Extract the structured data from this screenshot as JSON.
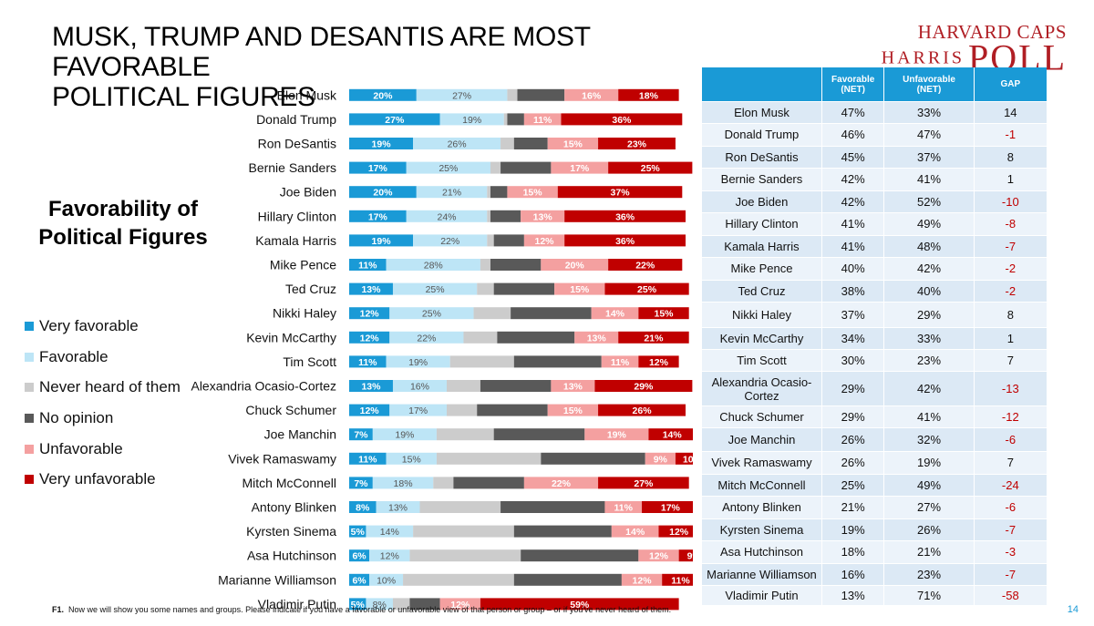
{
  "title_line1": "MUSK, TRUMP AND DESANTIS ARE MOST FAVORABLE",
  "title_line2": "POLITICAL FIGURES",
  "logo": {
    "top": "HARVARD CAPS",
    "bottom_left": "HARRIS",
    "bottom_right": "POLL"
  },
  "subheading_line1": "Favorability of",
  "subheading_line2": "Political Figures",
  "legend": [
    {
      "label": "Very favorable",
      "color": "#1a9ad6"
    },
    {
      "label": "Favorable",
      "color": "#bde5f6"
    },
    {
      "label": "Never heard of them",
      "color": "#cccccc"
    },
    {
      "label": "No opinion",
      "color": "#595959"
    },
    {
      "label": "Unfavorable",
      "color": "#f4a0a0"
    },
    {
      "label": "Very unfavorable",
      "color": "#c00000"
    }
  ],
  "chart_data": {
    "type": "bar",
    "orientation": "horizontal",
    "stacked": true,
    "categories": [
      "Elon Musk",
      "Donald Trump",
      "Ron DeSantis",
      "Bernie Sanders",
      "Joe Biden",
      "Hillary Clinton",
      "Kamala Harris",
      "Mike Pence",
      "Ted Cruz",
      "Nikki Haley",
      "Kevin McCarthy",
      "Tim Scott",
      "Alexandria Ocasio-Cortez",
      "Chuck Schumer",
      "Joe Manchin",
      "Vivek Ramaswamy",
      "Mitch McConnell",
      "Antony Blinken",
      "Kyrsten Sinema",
      "Asa Hutchinson",
      "Marianne Williamson",
      "Vladimir Putin"
    ],
    "series": [
      {
        "name": "Very favorable",
        "values": [
          20,
          27,
          19,
          17,
          20,
          17,
          19,
          11,
          13,
          12,
          12,
          11,
          13,
          12,
          7,
          11,
          7,
          8,
          5,
          6,
          6,
          5
        ]
      },
      {
        "name": "Favorable",
        "values": [
          27,
          19,
          26,
          25,
          21,
          24,
          22,
          28,
          25,
          25,
          22,
          19,
          16,
          17,
          19,
          15,
          18,
          13,
          14,
          12,
          10,
          8
        ]
      },
      {
        "name": "Never heard of them",
        "values": [
          3,
          1,
          4,
          3,
          1,
          1,
          2,
          3,
          5,
          11,
          10,
          19,
          10,
          9,
          17,
          31,
          6,
          24,
          30,
          33,
          33,
          5
        ]
      },
      {
        "name": "No opinion",
        "values": [
          14,
          5,
          10,
          15,
          5,
          9,
          9,
          15,
          18,
          24,
          23,
          26,
          21,
          21,
          27,
          31,
          21,
          31,
          29,
          35,
          32,
          9
        ]
      },
      {
        "name": "Unfavorable",
        "values": [
          16,
          11,
          15,
          17,
          15,
          13,
          12,
          20,
          15,
          14,
          13,
          11,
          13,
          15,
          19,
          9,
          22,
          11,
          14,
          12,
          12,
          12
        ]
      },
      {
        "name": "Very unfavorable",
        "values": [
          18,
          36,
          23,
          25,
          37,
          36,
          36,
          22,
          25,
          15,
          21,
          12,
          29,
          26,
          14,
          10,
          27,
          17,
          12,
          9,
          11,
          59
        ]
      }
    ],
    "labels": [
      [
        "20%",
        "27%",
        "",
        "",
        "16%",
        "18%"
      ],
      [
        "27%",
        "19%",
        "",
        "",
        "11%",
        "36%"
      ],
      [
        "19%",
        "26%",
        "",
        "",
        "15%",
        "23%"
      ],
      [
        "17%",
        "25%",
        "",
        "",
        "17%",
        "25%"
      ],
      [
        "20%",
        "21%",
        "",
        "",
        "15%",
        "37%"
      ],
      [
        "17%",
        "24%",
        "",
        "",
        "13%",
        "36%"
      ],
      [
        "19%",
        "22%",
        "",
        "",
        "12%",
        "36%"
      ],
      [
        "11%",
        "28%",
        "",
        "",
        "20%",
        "22%"
      ],
      [
        "13%",
        "25%",
        "",
        "",
        "15%",
        "25%"
      ],
      [
        "12%",
        "25%",
        "",
        "",
        "14%",
        "15%"
      ],
      [
        "12%",
        "22%",
        "",
        "",
        "13%",
        "21%"
      ],
      [
        "11%",
        "19%",
        "",
        "",
        "11%",
        "12%"
      ],
      [
        "13%",
        "16%",
        "",
        "",
        "13%",
        "29%"
      ],
      [
        "12%",
        "17%",
        "",
        "",
        "15%",
        "26%"
      ],
      [
        "7%",
        "19%",
        "",
        "",
        "19%",
        "14%"
      ],
      [
        "11%",
        "15%",
        "",
        "",
        "9%",
        "10%"
      ],
      [
        "7%",
        "18%",
        "",
        "",
        "22%",
        "27%"
      ],
      [
        "8%",
        "13%",
        "",
        "",
        "11%",
        "17%"
      ],
      [
        "5%",
        "14%",
        "",
        "",
        "14%",
        "12%"
      ],
      [
        "6%",
        "12%",
        "",
        "",
        "12%",
        "9%"
      ],
      [
        "6%",
        "10%",
        "",
        "",
        "12%",
        "11%"
      ],
      [
        "5%",
        "8%",
        "",
        "",
        "12%",
        "59%"
      ]
    ]
  },
  "table": {
    "headers": [
      "",
      "Favorable\n(NET)",
      "Unfavorable\n(NET)",
      "GAP"
    ],
    "rows": [
      [
        "Elon Musk",
        "47%",
        "33%",
        "14"
      ],
      [
        "Donald Trump",
        "46%",
        "47%",
        "-1"
      ],
      [
        "Ron DeSantis",
        "45%",
        "37%",
        "8"
      ],
      [
        "Bernie Sanders",
        "42%",
        "41%",
        "1"
      ],
      [
        "Joe Biden",
        "42%",
        "52%",
        "-10"
      ],
      [
        "Hillary Clinton",
        "41%",
        "49%",
        "-8"
      ],
      [
        "Kamala Harris",
        "41%",
        "48%",
        "-7"
      ],
      [
        "Mike Pence",
        "40%",
        "42%",
        "-2"
      ],
      [
        "Ted Cruz",
        "38%",
        "40%",
        "-2"
      ],
      [
        "Nikki Haley",
        "37%",
        "29%",
        "8"
      ],
      [
        "Kevin McCarthy",
        "34%",
        "33%",
        "1"
      ],
      [
        "Tim Scott",
        "30%",
        "23%",
        "7"
      ],
      [
        "Alexandria Ocasio-Cortez",
        "29%",
        "42%",
        "-13"
      ],
      [
        "Chuck Schumer",
        "29%",
        "41%",
        "-12"
      ],
      [
        "Joe Manchin",
        "26%",
        "32%",
        "-6"
      ],
      [
        "Vivek Ramaswamy",
        "26%",
        "19%",
        "7"
      ],
      [
        "Mitch McConnell",
        "25%",
        "49%",
        "-24"
      ],
      [
        "Antony Blinken",
        "21%",
        "27%",
        "-6"
      ],
      [
        "Kyrsten Sinema",
        "19%",
        "26%",
        "-7"
      ],
      [
        "Asa Hutchinson",
        "18%",
        "21%",
        "-3"
      ],
      [
        "Marianne Williamson",
        "16%",
        "23%",
        "-7"
      ],
      [
        "Vladimir Putin",
        "13%",
        "71%",
        "-58"
      ]
    ]
  },
  "footnote_label": "F1.",
  "footnote_text": "Now we will show you some names and groups. Please indicate if you have a favorable or unfavorable view of that person or group – or if you've never heard of them.",
  "page_number": "14"
}
